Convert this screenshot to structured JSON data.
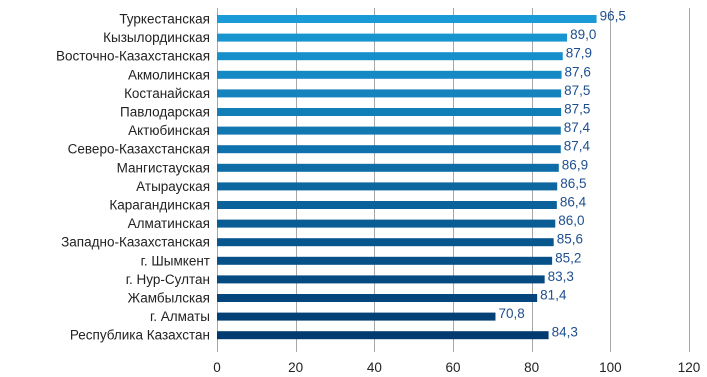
{
  "chart_data": {
    "type": "bar",
    "orientation": "horizontal",
    "categories": [
      "Туркестанская",
      "Кызылординская",
      "Восточно-Казахстанская",
      "Акмолинская",
      "Костанайская",
      "Павлодарская",
      "Актюбинская",
      "Северо-Казахстанская",
      "Мангистауская",
      "Атырауская",
      "Карагандинская",
      "Алматинская",
      "Западно-Казахстанская",
      "г. Шымкент",
      "г. Нур-Султан",
      "Жамбылская",
      "г. Алматы",
      "Республика Казахстан"
    ],
    "values": [
      96.5,
      89.0,
      87.9,
      87.6,
      87.5,
      87.5,
      87.4,
      87.4,
      86.9,
      86.5,
      86.4,
      86.0,
      85.6,
      85.2,
      83.3,
      81.4,
      70.8,
      84.3
    ],
    "value_labels": [
      "96,5",
      "89,0",
      "87,9",
      "87,6",
      "87,5",
      "87,5",
      "87,4",
      "87,4",
      "86,9",
      "86,5",
      "86,4",
      "86,0",
      "85,6",
      "85,2",
      "83,3",
      "81,4",
      "70,8",
      "84,3"
    ],
    "xlim": [
      0,
      120
    ],
    "x_ticks": [
      "0",
      "20",
      "40",
      "60",
      "80",
      "100",
      "120"
    ],
    "grid": "vertical",
    "legend": "none",
    "colors": {
      "bar_gradient_top": "#1a9ad6",
      "bar_gradient_bottom": "#003a70",
      "value_label": "#1f4f8f",
      "grid": "#a7a7a7"
    }
  }
}
